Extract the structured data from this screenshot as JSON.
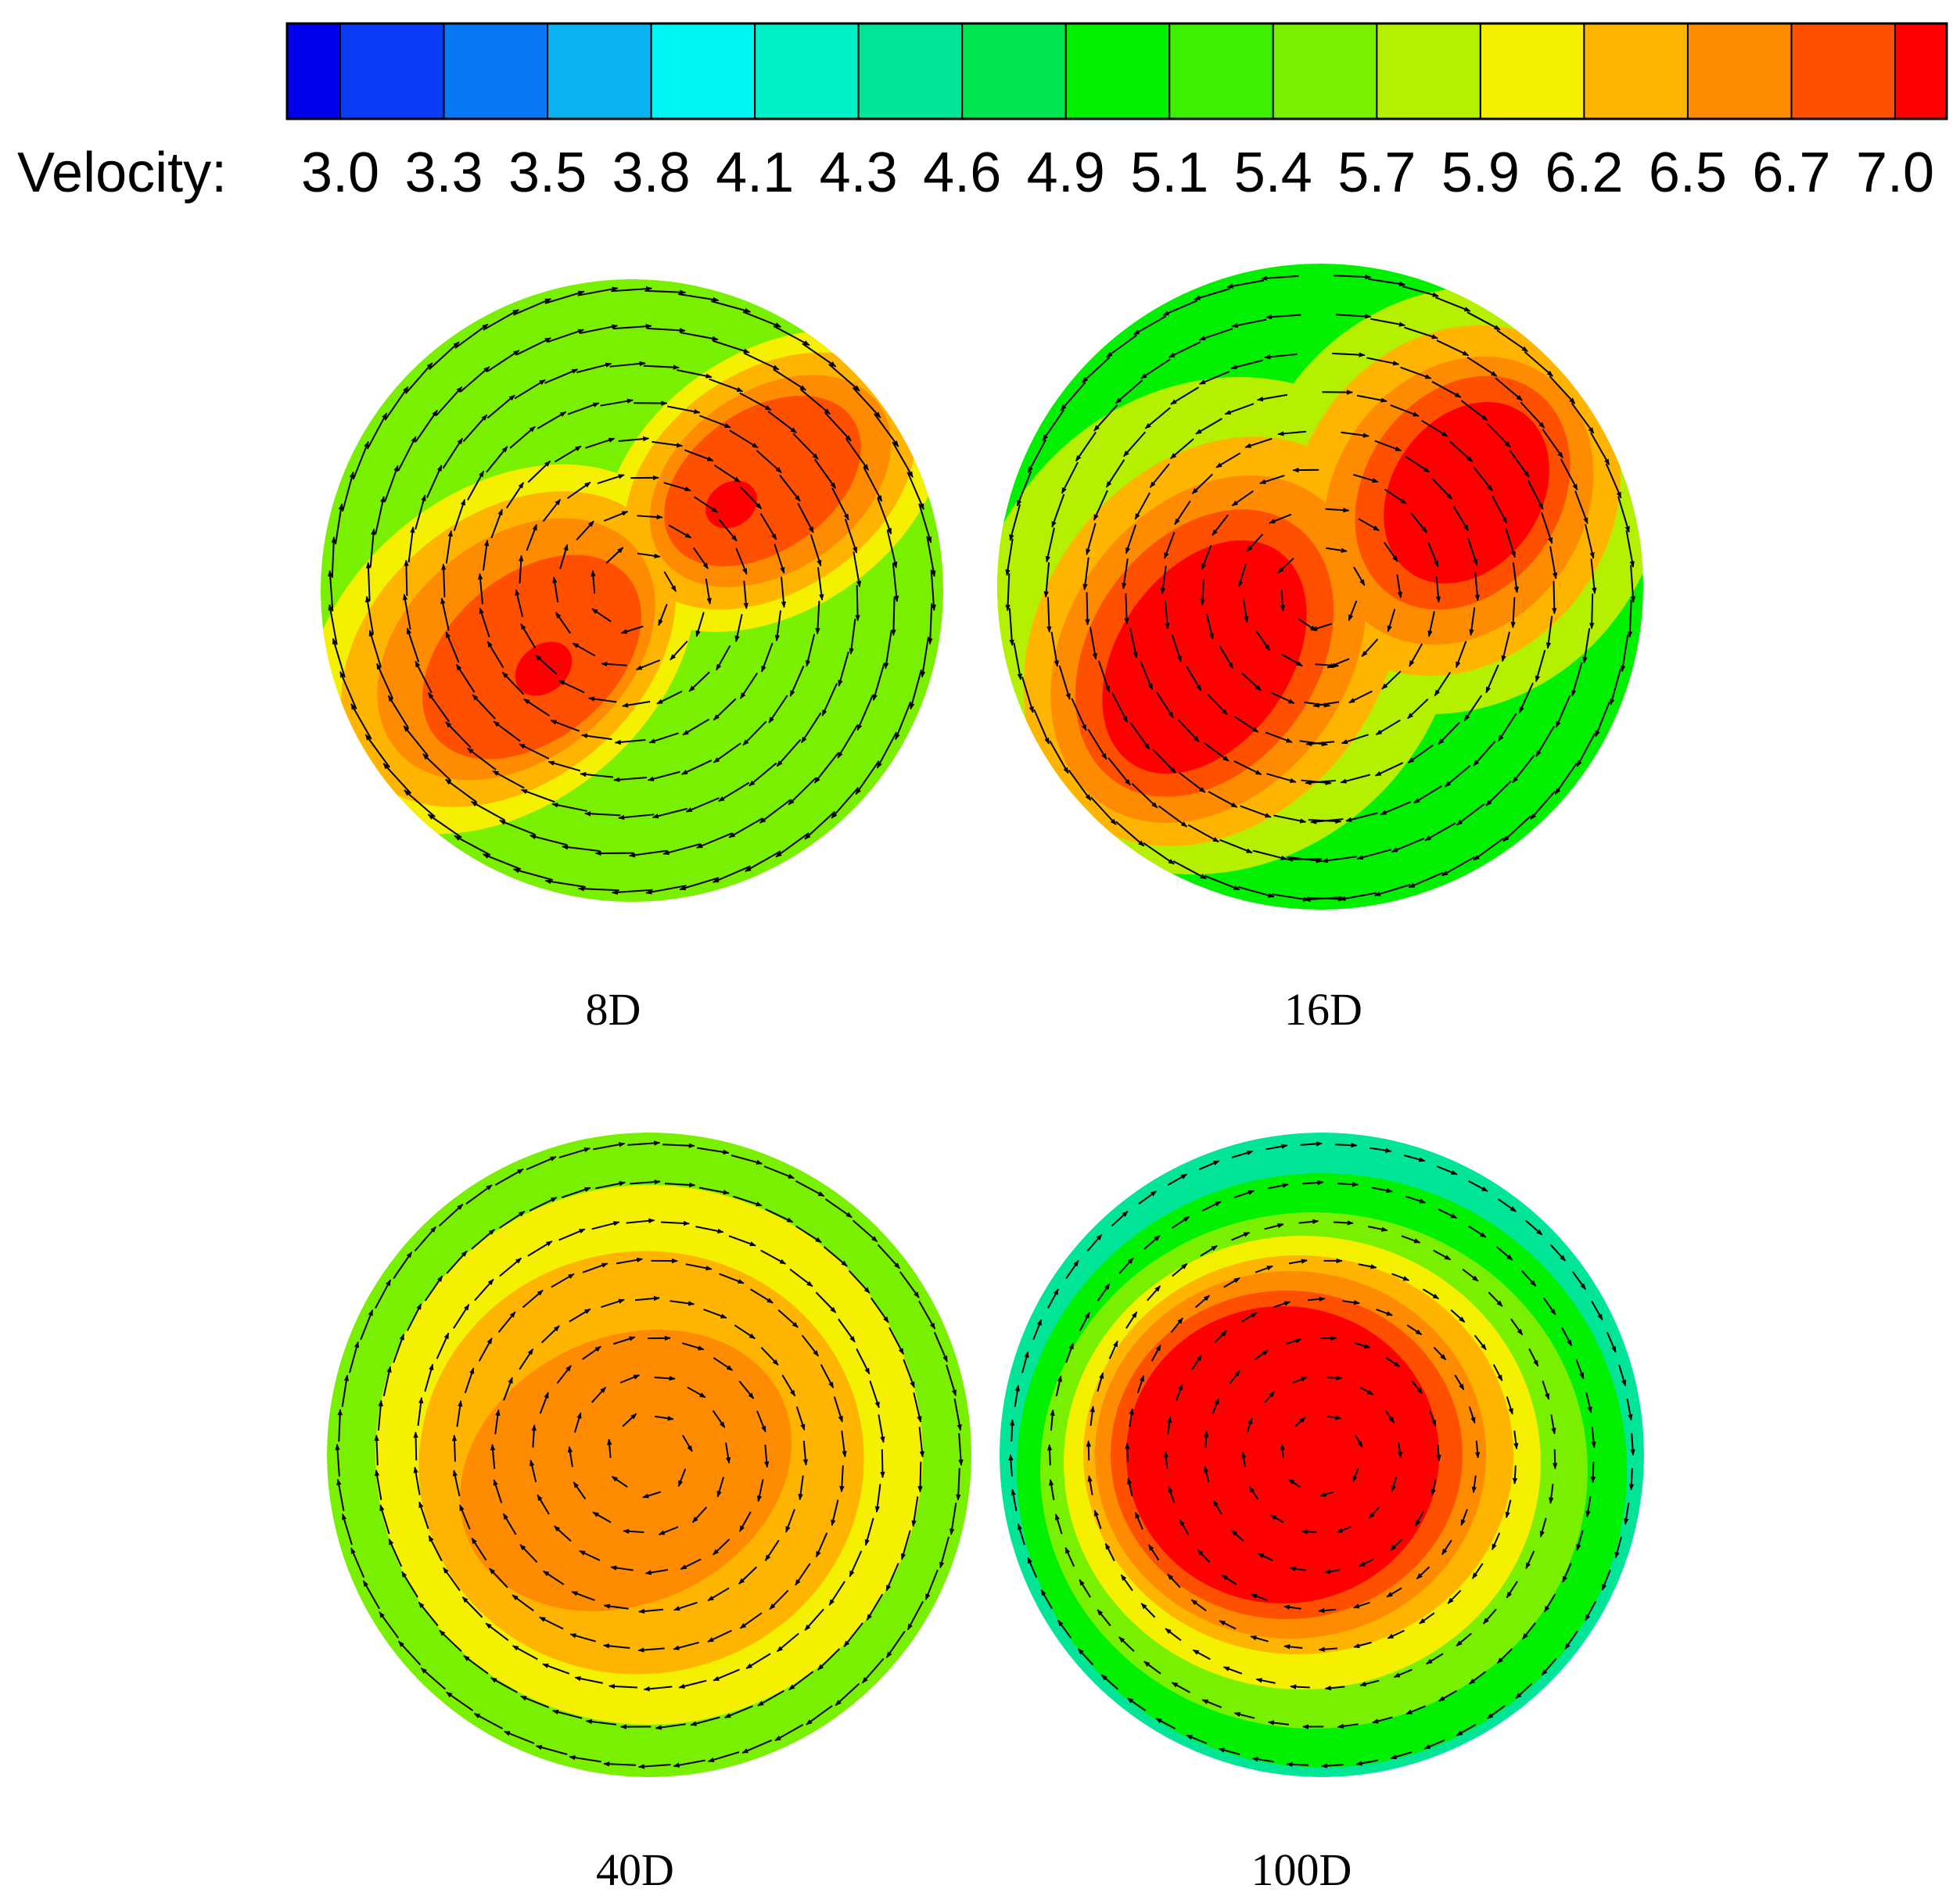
{
  "chart_data": {
    "type": "heatmap",
    "title": "",
    "colorbar": {
      "label": "Velocity:",
      "ticks": [
        "3.0",
        "3.3",
        "3.5",
        "3.8",
        "4.1",
        "4.3",
        "4.6",
        "4.9",
        "5.1",
        "5.4",
        "5.7",
        "5.9",
        "6.2",
        "6.5",
        "6.7",
        "7.0"
      ],
      "range": [
        3.0,
        7.0
      ],
      "colors": [
        "#0000ee",
        "#0a3cf5",
        "#0a78f5",
        "#0ab4f0",
        "#00f5f5",
        "#00f0c8",
        "#00e696",
        "#00e650",
        "#00f000",
        "#3cf000",
        "#78f000",
        "#b4f000",
        "#f5f000",
        "#ffb400",
        "#ff8c00",
        "#ff5000",
        "#ff0000"
      ]
    },
    "panels": [
      {
        "caption": "8D",
        "background_velocity": 5.4,
        "contours": [
          {
            "velocity": 5.9
          },
          {
            "velocity": 6.2
          },
          {
            "velocity": 6.5
          },
          {
            "velocity": 6.7
          },
          {
            "velocity": 7.0
          }
        ],
        "vectors": "strong swirl, two-lobe core"
      },
      {
        "caption": "16D",
        "background_velocity": 5.1,
        "contours": [
          {
            "velocity": 5.7
          },
          {
            "velocity": 6.2
          },
          {
            "velocity": 6.5
          },
          {
            "velocity": 6.7
          },
          {
            "velocity": 7.0
          }
        ],
        "vectors": "secondary flow, two cores"
      },
      {
        "caption": "40D",
        "background_velocity": 5.4,
        "contours": [
          {
            "velocity": 5.9
          },
          {
            "velocity": 6.2
          },
          {
            "velocity": 6.5
          }
        ],
        "vectors": "swirling, decaying"
      },
      {
        "caption": "100D",
        "background_velocity": 4.6,
        "contours": [
          {
            "velocity": 4.9
          },
          {
            "velocity": 5.4
          },
          {
            "velocity": 5.9
          },
          {
            "velocity": 6.2
          },
          {
            "velocity": 6.5
          },
          {
            "velocity": 6.7
          },
          {
            "velocity": 7.0
          }
        ],
        "vectors": "weak, nearly developed"
      }
    ]
  }
}
